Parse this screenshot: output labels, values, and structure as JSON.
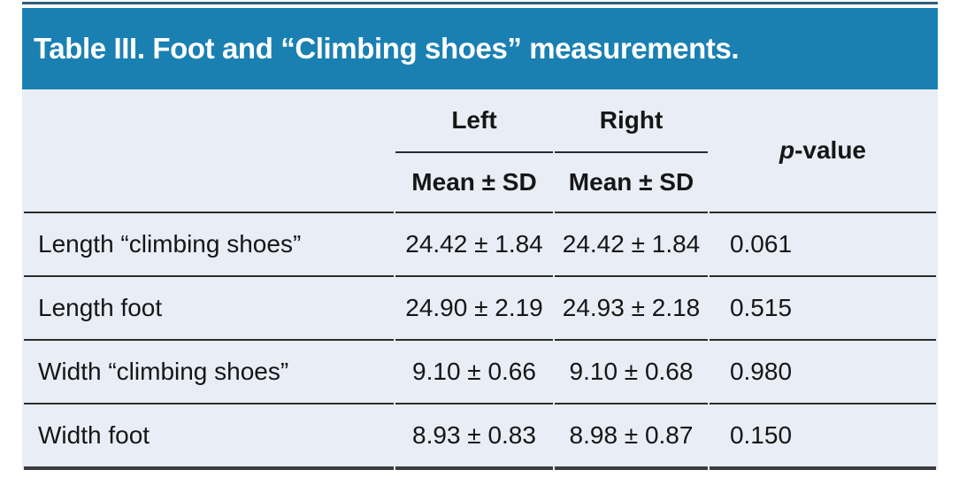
{
  "table": {
    "title": "Table III. Foot and “Climbing shoes” measurements.",
    "header": {
      "left_group": "Left",
      "right_group": "Right",
      "p_italic": "p",
      "p_rest": "-value",
      "sub_left": "Mean ± SD",
      "sub_right": "Mean ± SD"
    },
    "rows": [
      {
        "label": "Length “climbing shoes”",
        "left": "24.42 ± 1.84",
        "right": "24.42 ± 1.84",
        "p": "0.061"
      },
      {
        "label": "Length foot",
        "left": "24.90 ± 2.19",
        "right": "24.93 ± 2.18",
        "p": "0.515"
      },
      {
        "label": "Width “climbing shoes”",
        "left": "9.10 ± 0.66",
        "right": "9.10 ± 0.68",
        "p": "0.980"
      },
      {
        "label": "Width foot",
        "left": "8.93 ± 0.83",
        "right": "8.98 ± 0.87",
        "p": "0.150"
      }
    ],
    "colors": {
      "header_bg": "#1a80b2",
      "body_bg": "#e9edf6",
      "rule": "#2b2b2b",
      "bottom_rule": "#3c3c3c",
      "top_line": "#2d5f7c",
      "title_text": "#ffffff",
      "body_text": "#161616"
    }
  }
}
